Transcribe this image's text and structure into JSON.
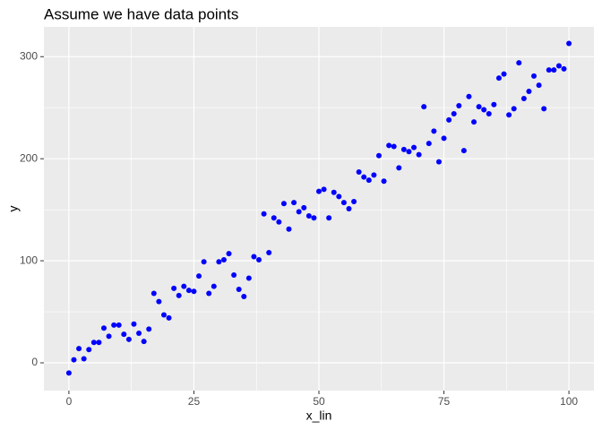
{
  "chart_data": {
    "type": "scatter",
    "title": "Assume we have data points",
    "x_label": "x_lin",
    "y_label": "y",
    "x": [
      0,
      1,
      2,
      3,
      4,
      5,
      6,
      7,
      8,
      9,
      10,
      11,
      12,
      13,
      14,
      15,
      16,
      17,
      18,
      19,
      20,
      21,
      22,
      23,
      24,
      25,
      26,
      27,
      28,
      29,
      30,
      31,
      32,
      33,
      34,
      35,
      36,
      37,
      38,
      39,
      40,
      41,
      42,
      43,
      44,
      45,
      46,
      47,
      48,
      49,
      50,
      51,
      52,
      53,
      54,
      55,
      56,
      57,
      58,
      59,
      60,
      61,
      62,
      63,
      64,
      65,
      66,
      67,
      68,
      69,
      70,
      71,
      72,
      73,
      74,
      75,
      76,
      77,
      78,
      79,
      80,
      81,
      82,
      83,
      84,
      85,
      86,
      87,
      88,
      89,
      90,
      91,
      92,
      93,
      94,
      95,
      96,
      97,
      98,
      99,
      100
    ],
    "values": [
      -10,
      3,
      14,
      4,
      13,
      20,
      20,
      34,
      26,
      37,
      37,
      28,
      23,
      38,
      29,
      21,
      33,
      68,
      60,
      47,
      44,
      73,
      66,
      75,
      71,
      70,
      85,
      99,
      68,
      75,
      99,
      101,
      107,
      86,
      72,
      65,
      83,
      104,
      101,
      146,
      108,
      142,
      138,
      156,
      131,
      157,
      148,
      152,
      144,
      142,
      168,
      170,
      142,
      167,
      163,
      157,
      151,
      158,
      187,
      182,
      179,
      184,
      203,
      178,
      213,
      212,
      191,
      209,
      207,
      211,
      204,
      251,
      215,
      227,
      197,
      220,
      238,
      244,
      252,
      208,
      261,
      236,
      251,
      248,
      244,
      253,
      279,
      283,
      243,
      249,
      294,
      259,
      266,
      281,
      272,
      249,
      287,
      287,
      291,
      288,
      313
    ],
    "color": "#0000ff",
    "xlim": [
      -5,
      105
    ],
    "ylim": [
      -27.2,
      329.2
    ],
    "xticks": [
      0,
      25,
      50,
      75,
      100
    ],
    "yticks": [
      0,
      100,
      200,
      300
    ],
    "xminor": [
      12.5,
      37.5,
      62.5,
      87.5
    ],
    "yminor": [
      50,
      150,
      250
    ],
    "grid": true
  }
}
